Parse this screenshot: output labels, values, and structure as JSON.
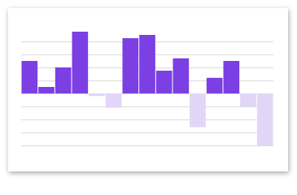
{
  "chart_data": {
    "type": "bar",
    "categories": [
      null,
      null,
      null,
      null,
      null,
      null,
      null,
      null,
      null,
      null,
      null,
      null,
      null,
      null,
      null
    ],
    "values": [
      2.5,
      0.5,
      2,
      4.75,
      -0.2,
      -1.1,
      4.25,
      4.5,
      1.75,
      2.7,
      -2.6,
      1.2,
      2.5,
      -1,
      -4
    ],
    "color": "#7b3fe4",
    "negative_color": "#e2d6f8",
    "ylim": [
      -4,
      5
    ],
    "yticks": [
      -4,
      -3,
      -2,
      -1,
      0,
      1,
      2,
      3,
      4
    ],
    "grid": true
  }
}
